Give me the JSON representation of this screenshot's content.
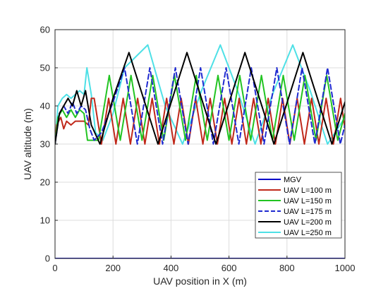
{
  "chart_data": {
    "type": "line",
    "title": "",
    "xlabel": "UAV position in X (m)",
    "ylabel": "UAV altitude (m)",
    "xlim": [
      0,
      1000
    ],
    "ylim": [
      0,
      60
    ],
    "xticks": [
      0,
      200,
      400,
      600,
      800,
      1000
    ],
    "yticks": [
      0,
      10,
      20,
      30,
      40,
      50,
      60
    ],
    "grid": true,
    "legend_position": "bottom-right",
    "series": [
      {
        "name": "MGV",
        "color": "#0000c8",
        "dash": "solid",
        "x": [
          0,
          1000
        ],
        "y": [
          0,
          0
        ]
      },
      {
        "name": "UAV L=100 m",
        "color": "#c0281a",
        "dash": "solid",
        "x": [
          0,
          5,
          20,
          30,
          40,
          55,
          70,
          85,
          100,
          115,
          125,
          135,
          160,
          185,
          210,
          235,
          260,
          285,
          310,
          335,
          360,
          385,
          410,
          435,
          460,
          485,
          510,
          535,
          560,
          585,
          610,
          635,
          660,
          685,
          710,
          735,
          760,
          785,
          810,
          835,
          860,
          885,
          910,
          935,
          960,
          985,
          1000
        ],
        "y": [
          30,
          35,
          37,
          34,
          36,
          35,
          36,
          36,
          36,
          35,
          42,
          42,
          30,
          42,
          30,
          42,
          30,
          42,
          30,
          42,
          30,
          42,
          30,
          42,
          30,
          42,
          30,
          42,
          30,
          42,
          30,
          42,
          30,
          42,
          30,
          42,
          30,
          42,
          30,
          42,
          30,
          42,
          30,
          42,
          30,
          42,
          34
        ]
      },
      {
        "name": "UAV L=150 m",
        "color": "#22c422",
        "dash": "solid",
        "x": [
          0,
          10,
          25,
          40,
          55,
          70,
          85,
          100,
          112,
          125,
          150,
          187,
          225,
          262,
          300,
          337,
          375,
          412,
          450,
          487,
          525,
          562,
          600,
          637,
          675,
          712,
          750,
          787,
          825,
          862,
          900,
          937,
          975,
          1000
        ],
        "y": [
          30,
          37,
          39,
          37,
          39,
          37,
          39,
          38,
          31,
          31,
          31,
          48,
          31,
          48,
          31,
          48,
          31,
          48,
          31,
          48,
          31,
          48,
          31,
          48,
          31,
          48,
          31,
          48,
          31,
          48,
          31,
          48,
          31,
          38
        ]
      },
      {
        "name": "UAV L=175 m",
        "color": "#1f2ad0",
        "dash": "dash",
        "x": [
          0,
          15,
          30,
          45,
          60,
          75,
          90,
          105,
          120,
          135,
          160,
          200,
          240,
          284,
          327,
          371,
          415,
          459,
          502,
          546,
          590,
          634,
          677,
          721,
          765,
          809,
          852,
          896,
          940,
          984,
          1000
        ],
        "y": [
          30,
          38,
          40,
          38,
          41,
          38,
          40,
          39,
          34,
          31,
          33,
          41,
          50,
          30,
          50,
          30,
          50,
          30,
          50,
          30,
          50,
          30,
          50,
          30,
          50,
          30,
          50,
          30,
          50,
          30,
          35
        ]
      },
      {
        "name": "UAV L=200 m",
        "color": "#000000",
        "dash": "solid",
        "x": [
          0,
          15,
          30,
          45,
          60,
          75,
          90,
          105,
          125,
          155,
          200,
          255,
          355,
          455,
          555,
          655,
          755,
          855,
          955,
          1000
        ],
        "y": [
          30,
          38,
          40,
          42,
          40,
          44,
          40,
          44,
          35,
          30,
          42,
          54,
          30,
          54,
          30,
          54,
          30,
          54,
          30,
          41
        ]
      },
      {
        "name": "UAV L=250 m",
        "color": "#4ee0e6",
        "dash": "solid",
        "x": [
          0,
          10,
          25,
          40,
          55,
          70,
          85,
          100,
          110,
          125,
          140,
          165,
          200,
          240,
          320,
          380,
          440,
          505,
          570,
          630,
          690,
          755,
          820,
          880,
          940,
          1000
        ],
        "y": [
          30,
          40,
          42,
          43,
          42,
          43,
          44,
          43,
          50,
          43,
          33,
          31,
          38,
          50,
          56,
          40,
          30,
          44,
          56,
          44,
          30,
          44,
          56,
          44,
          30,
          37
        ]
      }
    ]
  }
}
